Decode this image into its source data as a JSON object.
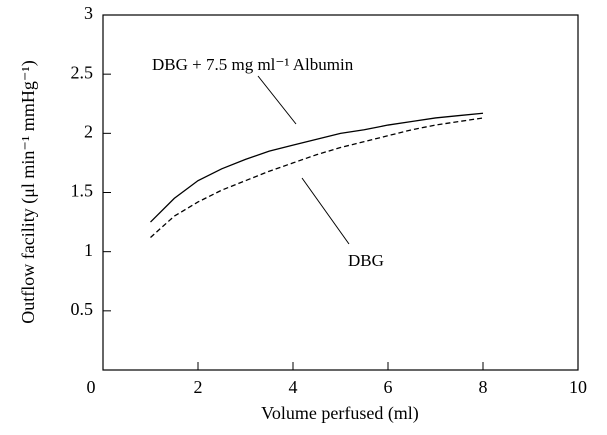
{
  "chart_data": {
    "type": "line",
    "xlabel": "Volume perfused (ml)",
    "ylabel": "Outflow facility (μl min⁻¹ mmHg⁻¹)",
    "annotations": [
      "DBG + 7.5 mg ml⁻¹ Albumin",
      "DBG"
    ],
    "x": [
      1,
      1.5,
      2,
      2.5,
      3,
      3.5,
      4,
      4.5,
      5,
      5.5,
      6,
      6.5,
      7,
      7.5,
      8
    ],
    "series": [
      {
        "name": "DBG + 7.5 mg ml⁻¹ Albumin",
        "color": "#000000",
        "style": "solid",
        "values": [
          1.25,
          1.45,
          1.6,
          1.7,
          1.78,
          1.85,
          1.9,
          1.95,
          2.0,
          2.03,
          2.07,
          2.1,
          2.13,
          2.15,
          2.17
        ]
      },
      {
        "name": "DBG",
        "color": "#000000",
        "style": "dashed",
        "values": [
          1.12,
          1.3,
          1.42,
          1.52,
          1.6,
          1.68,
          1.75,
          1.82,
          1.88,
          1.93,
          1.98,
          2.03,
          2.07,
          2.1,
          2.13
        ]
      }
    ],
    "xlim": [
      0,
      10
    ],
    "xticks": [
      0,
      2,
      4,
      6,
      8,
      10
    ],
    "ylim": [
      0,
      3
    ],
    "yticks": [
      0.5,
      1,
      1.5,
      2,
      2.5,
      3
    ]
  }
}
